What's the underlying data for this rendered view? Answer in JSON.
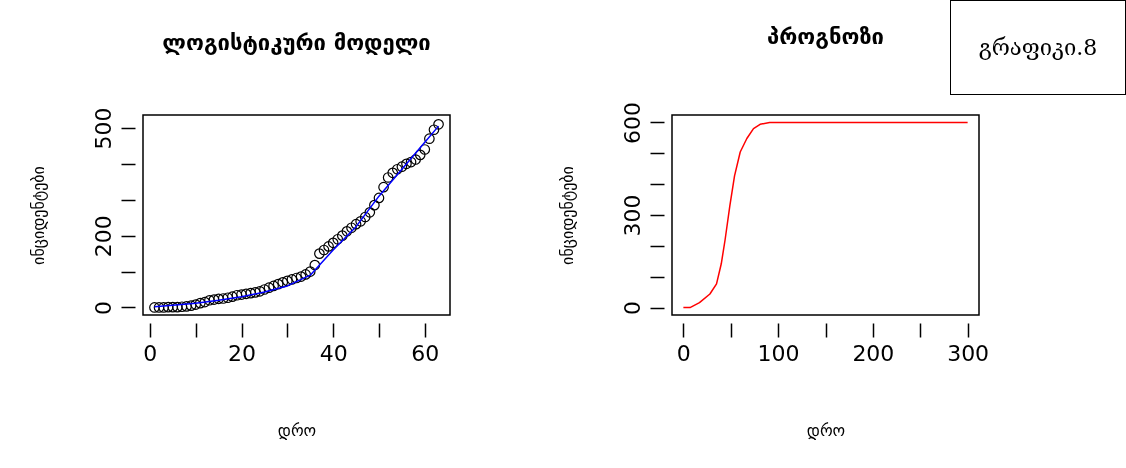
{
  "chart_data": [
    {
      "type": "scatter",
      "title": "ლოგისტიკური მოდელი",
      "xlabel": "დრო",
      "ylabel": "ინციდენტები",
      "x": [
        1,
        2,
        3,
        4,
        5,
        6,
        7,
        8,
        9,
        10,
        11,
        12,
        13,
        14,
        15,
        16,
        17,
        18,
        19,
        20,
        21,
        22,
        23,
        24,
        25,
        26,
        27,
        28,
        29,
        30,
        31,
        32,
        33,
        34,
        35,
        36,
        37,
        38,
        39,
        40,
        41,
        42,
        43,
        44,
        45,
        46,
        47,
        48,
        49,
        50,
        51,
        52,
        53,
        54,
        55,
        56,
        57,
        58,
        59,
        60,
        61,
        62,
        63
      ],
      "xlim": [
        -1.5,
        65.5
      ],
      "ylim": [
        -21,
        536
      ],
      "xticks": [
        0,
        {
          "value": 10,
          "label": null
        },
        20,
        {
          "value": 30,
          "label": null
        },
        40,
        {
          "value": 50,
          "label": null
        },
        60
      ],
      "yticks": [
        0,
        {
          "value": 100,
          "label": null
        },
        200,
        {
          "value": 300,
          "label": null
        },
        {
          "value": 400,
          "label": null
        },
        500
      ],
      "series": [
        {
          "marker": "circle",
          "color": "#000000",
          "values": [
            0,
            0,
            0,
            1,
            1,
            1,
            2,
            3,
            5,
            8,
            12,
            15,
            20,
            22,
            24,
            25,
            27,
            30,
            34,
            36,
            38,
            40,
            42,
            45,
            50,
            55,
            60,
            65,
            70,
            74,
            78,
            82,
            86,
            92,
            100,
            118,
            150,
            160,
            170,
            180,
            190,
            200,
            212,
            222,
            232,
            240,
            252,
            265,
            285,
            305,
            335,
            362,
            375,
            385,
            392,
            400,
            405,
            412,
            425,
            440,
            470,
            495,
            510
          ]
        },
        {
          "type": "line",
          "color": "#0000ff",
          "x": [
            1,
            5,
            10,
            15,
            20,
            25,
            30,
            35,
            40,
            45,
            50,
            55,
            60,
            63
          ],
          "values": [
            2,
            6,
            12,
            20,
            30,
            43,
            60,
            90,
            160,
            225,
            310,
            385,
            460,
            505
          ]
        }
      ]
    },
    {
      "type": "line",
      "title": "პროგნოზი",
      "xlabel": "დრო",
      "ylabel": "ინციდენტები",
      "x": [
        0,
        7,
        17,
        28,
        35,
        40,
        44,
        49,
        54,
        60,
        67,
        74,
        81,
        91,
        300
      ],
      "xlim": [
        -12,
        312
      ],
      "ylim": [
        -24,
        624
      ],
      "xticks": [
        0,
        {
          "value": 50,
          "label": null
        },
        100,
        {
          "value": 150,
          "label": null
        },
        200,
        {
          "value": 250,
          "label": null
        },
        300
      ],
      "yticks": [
        0,
        {
          "value": 100,
          "label": null
        },
        {
          "value": 200,
          "label": null
        },
        300,
        {
          "value": 400,
          "label": null
        },
        {
          "value": 500,
          "label": null
        },
        600
      ],
      "annotations": [
        "გრაფიკი.8"
      ],
      "series": [
        {
          "color": "#ff0000",
          "values": [
            0,
            0,
            16,
            44,
            77,
            142,
            219,
            329,
            427,
            504,
            548,
            580,
            594,
            600,
            600
          ]
        }
      ]
    }
  ]
}
